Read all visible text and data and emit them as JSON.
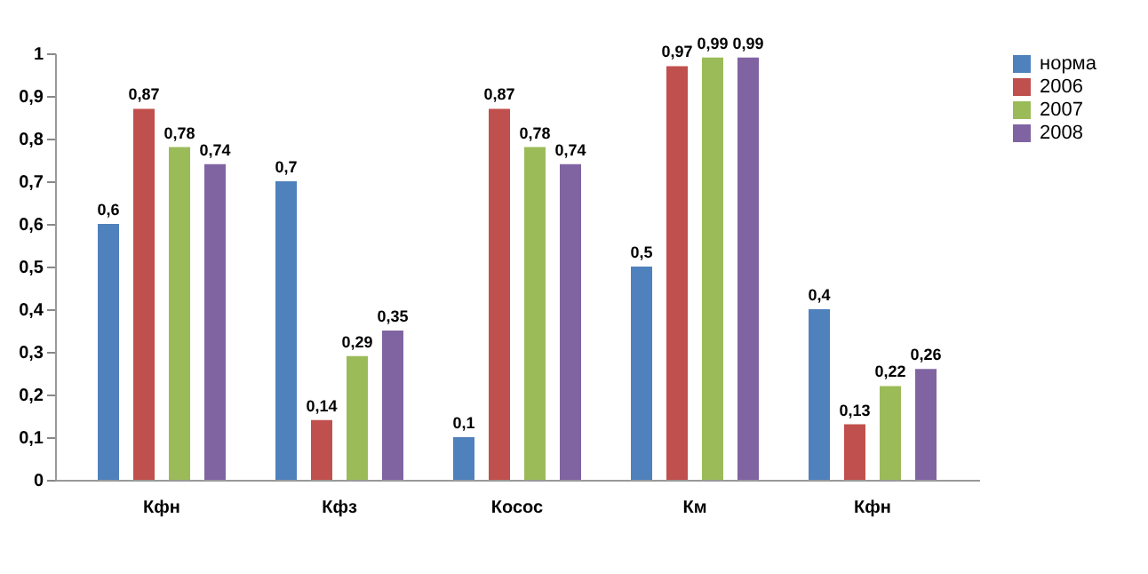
{
  "chart_data": {
    "type": "bar",
    "categories": [
      "Кфн",
      "Кфз",
      "Косос",
      "Км",
      "Кфн"
    ],
    "series": [
      {
        "name": "норма",
        "color": "#4f81bd",
        "values": [
          0.6,
          0.7,
          0.1,
          0.5,
          0.4
        ],
        "value_labels": [
          "0,6",
          "0,7",
          "0,1",
          "0,5",
          "0,4"
        ]
      },
      {
        "name": "2006",
        "color": "#c0504d",
        "values": [
          0.87,
          0.14,
          0.87,
          0.97,
          0.13
        ],
        "value_labels": [
          "0,87",
          "0,14",
          "0,87",
          "0,97",
          "0,13"
        ]
      },
      {
        "name": "2007",
        "color": "#9bbb59",
        "values": [
          0.78,
          0.29,
          0.78,
          0.99,
          0.22
        ],
        "value_labels": [
          "0,78",
          "0,29",
          "0,78",
          "0,99",
          "0,22"
        ]
      },
      {
        "name": "2008",
        "color": "#8064a2",
        "values": [
          0.74,
          0.35,
          0.74,
          0.99,
          0.26
        ],
        "value_labels": [
          "0,74",
          "0,35",
          "0,74",
          "0,99",
          "0,26"
        ]
      }
    ],
    "ylim": [
      0,
      1
    ],
    "yticks": [
      0,
      {
        "value": 0.1,
        "label": "0,1"
      },
      {
        "value": 0.2,
        "label": "0,2"
      },
      {
        "value": 0.3,
        "label": "0,3"
      },
      {
        "value": 0.4,
        "label": "0,4"
      },
      {
        "value": 0.5,
        "label": "0,5"
      },
      {
        "value": 0.6,
        "label": "0,6"
      },
      {
        "value": 0.7,
        "label": "0,7"
      },
      {
        "value": 0.8,
        "label": "0,8"
      },
      {
        "value": 0.9,
        "label": "0,9"
      },
      1
    ],
    "legend": "right"
  }
}
